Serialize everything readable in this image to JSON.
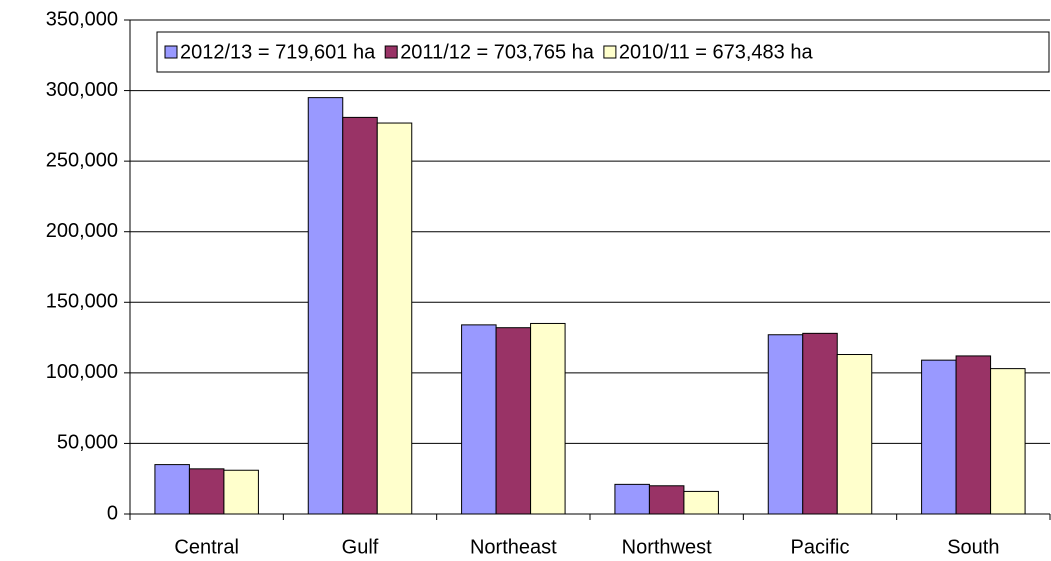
{
  "chart_data": {
    "type": "bar",
    "categories": [
      "Central",
      "Gulf",
      "Northeast",
      "Northwest",
      "Pacific",
      "South"
    ],
    "series": [
      {
        "name": "2012/13 = 719,601 ha",
        "color": "#9999ff",
        "values": [
          35000,
          295000,
          134000,
          21000,
          127000,
          109000
        ]
      },
      {
        "name": "2011/12 = 703,765 ha",
        "color": "#993366",
        "values": [
          32000,
          281000,
          132000,
          20000,
          128000,
          112000
        ]
      },
      {
        "name": "2010/11 = 673,483 ha",
        "color": "#ffffcc",
        "values": [
          31000,
          277000,
          135000,
          16000,
          113000,
          103000
        ]
      }
    ],
    "ylim": [
      0,
      350000
    ],
    "yticks": [
      0,
      {
        "value": 50000,
        "label": "50,000"
      },
      {
        "value": 100000,
        "label": "100,000"
      },
      {
        "value": 150000,
        "label": "150,000"
      },
      {
        "value": 200000,
        "label": "200,000"
      },
      {
        "value": 250000,
        "label": "250,000"
      },
      {
        "value": 300000,
        "label": "300,000"
      },
      {
        "value": 350000,
        "label": "350,000"
      }
    ],
    "grid": true,
    "legend": "top"
  }
}
